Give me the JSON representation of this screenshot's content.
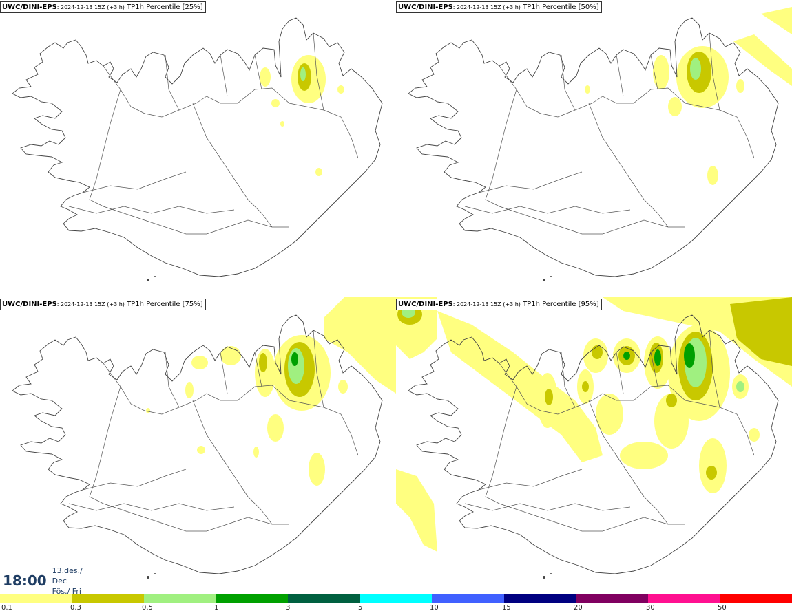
{
  "panels": [
    {
      "source": "UWC/DINI-EPS",
      "run": ": 2024-12-13 15Z (+3 h)",
      "variable": " TP1h Percentile [25%]"
    },
    {
      "source": "UWC/DINI-EPS",
      "run": ": 2024-12-13 15Z (+3 h)",
      "variable": " TP1h Percentile [50%]"
    },
    {
      "source": "UWC/DINI-EPS",
      "run": ": 2024-12-13 15Z (+3 h)",
      "variable": " TP1h Percentile [75%]"
    },
    {
      "source": "UWC/DINI-EPS",
      "run": ": 2024-12-13 15Z (+3 h)",
      "variable": " TP1h Percentile [95%]"
    }
  ],
  "valid_time": {
    "time": "18:00",
    "date_line1": "13.des./ Dec",
    "date_line2": "Fös./ Fri"
  },
  "colorbar": {
    "colors": [
      "#ffff80",
      "#c8c800",
      "#a0f080",
      "#00a000",
      "#006040",
      "#00ffff",
      "#4060ff",
      "#000080",
      "#800060",
      "#ff1090",
      "#ff0000"
    ],
    "labels": [
      "0.1",
      "0.3",
      "0.5",
      "1",
      "3",
      "5",
      "10",
      "15",
      "20",
      "30",
      "50"
    ]
  },
  "palette": {
    "light": "#ffff80",
    "mid": "#c8c800",
    "lightgreen": "#a0f080",
    "green": "#00a000"
  }
}
